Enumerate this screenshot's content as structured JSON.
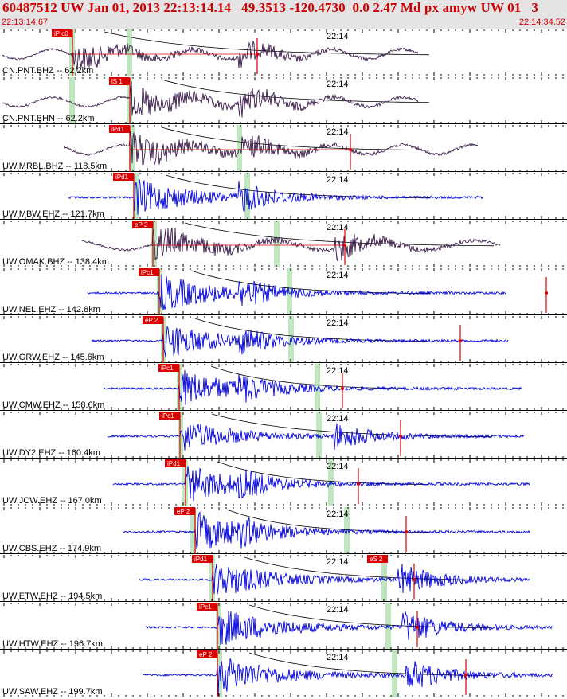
{
  "header": {
    "title": "60487512 UW Jan 01, 2013 22:13:14.14   49.3513 -120.4730  0.0 2.47 Md px amyw UW 01   3",
    "start_time": "22:13:14.67",
    "end_time": "22:14:34.52"
  },
  "colors": {
    "header_text": "#cc0000",
    "header_bg": "#e4e4e4",
    "broadband_trace": "#3a1a4a",
    "short_period_trace": "#0000dd",
    "pick": "#dd0000",
    "coda_window": "#bfe6bf",
    "coda_curve": "#000000"
  },
  "time_marker_label": "22:14",
  "traces": [
    {
      "label": "CN.PNT.BHZ -- 62.2km",
      "pick": "iP c0",
      "type": "bb"
    },
    {
      "label": "CN.PNT.BHN -- 62.2km",
      "pick": "iS 1",
      "type": "bb"
    },
    {
      "label": "UW.MRBL.BHZ -- 118.5km",
      "pick": "iPd1",
      "type": "bb"
    },
    {
      "label": "UW.MBW.EHZ -- 121.7km",
      "pick": "iPd1",
      "type": "sp"
    },
    {
      "label": "UW.OMAK.BHZ -- 138.4km",
      "pick": "eP 2",
      "type": "bb"
    },
    {
      "label": "UW.NEL.EHZ -- 142.8km",
      "pick": "iPc1",
      "type": "sp"
    },
    {
      "label": "UW.GRW.EHZ -- 145.6km",
      "pick": "eP 2",
      "type": "sp"
    },
    {
      "label": "UW.CMW.EHZ -- 158.6km",
      "pick": "iPc1",
      "type": "sp"
    },
    {
      "label": "UW.DY2.EHZ -- 160.4km",
      "pick": "iPc1",
      "type": "sp"
    },
    {
      "label": "UW.JCW.EHZ -- 167.0km",
      "pick": "iPd1",
      "type": "sp"
    },
    {
      "label": "UW.CBS.EHZ -- 174.9km",
      "pick": "eP 2",
      "type": "sp"
    },
    {
      "label": "UW.ETW.EHZ -- 194.5km",
      "pick": "iPd1",
      "type": "sp",
      "extra_pick": "eS 2"
    },
    {
      "label": "UW.HTW.EHZ -- 196.7km",
      "pick": "iPc1",
      "type": "sp"
    },
    {
      "label": "UW.SAW.EHZ -- 199.7km",
      "pick": "eP 2",
      "type": "sp"
    }
  ]
}
